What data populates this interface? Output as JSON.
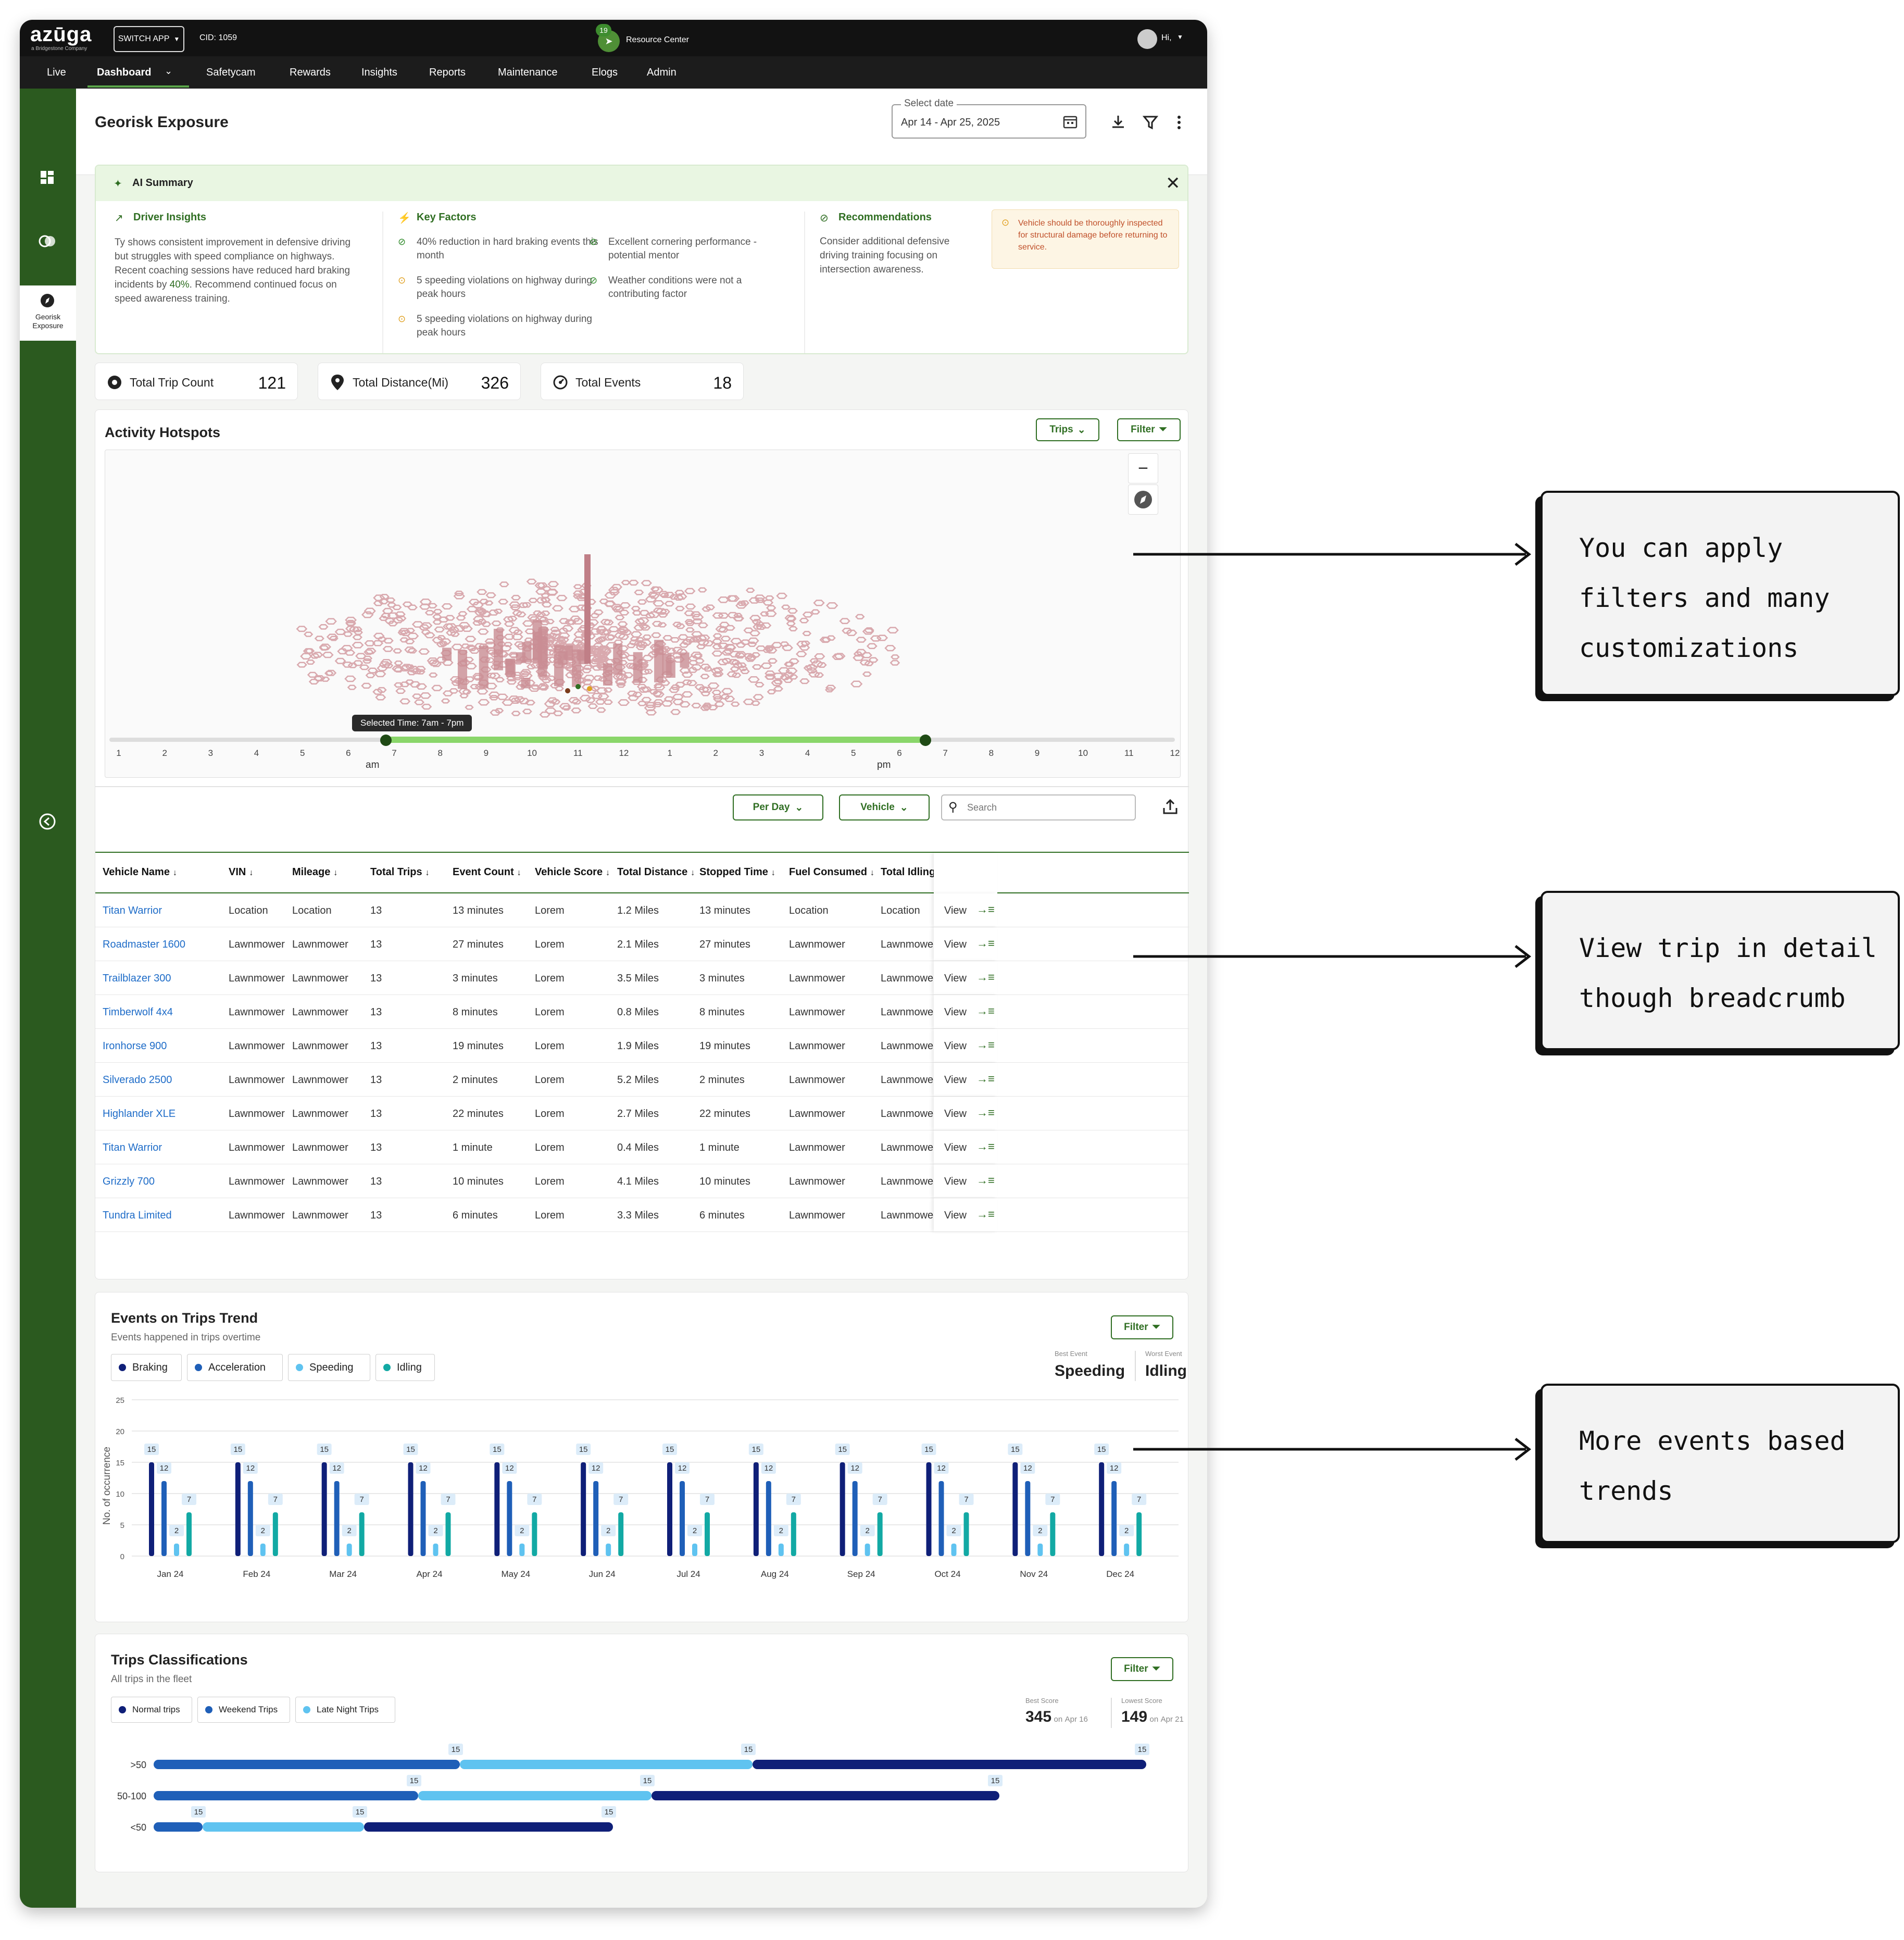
{
  "brand": {
    "logo": "azūga",
    "tagline": "a Bridgestone Company"
  },
  "topbar": {
    "switch_app": "SWITCH APP",
    "cid": "CID: 1059",
    "resource_badge": "19",
    "resource_center": "Resource Center",
    "greeting": "Hi,"
  },
  "nav": {
    "items": [
      "Live",
      "Dashboard",
      "Safetycam",
      "Rewards",
      "Insights",
      "Reports",
      "Maintenance",
      "Elogs",
      "Admin"
    ],
    "active": "Dashboard"
  },
  "sidebar": {
    "georisk_label": "Georisk Exposure"
  },
  "header": {
    "title": "Georisk Exposure",
    "date_label": "Select date",
    "date_value": "Apr 14 - Apr 25, 2025"
  },
  "ai_summary": {
    "title": "AI Summary",
    "driver_insights": {
      "title": "Driver Insights",
      "text_before": "Ty shows consistent improvement in defensive driving but struggles with speed compliance on highways. Recent coaching sessions have reduced hard braking incidents by ",
      "highlight": "40%",
      "text_after": ". Recommend continued focus on speed awareness training."
    },
    "key_factors": {
      "title": "Key Factors",
      "items": [
        {
          "text": "40% reduction in hard braking events this month",
          "status": "good"
        },
        {
          "text": "Excellent cornering performance - potential mentor",
          "status": "good"
        },
        {
          "text": "5 speeding violations on highway during peak hours",
          "status": "warn"
        },
        {
          "text": "Weather conditions were not a contributing factor",
          "status": "good"
        },
        {
          "text": "5 speeding violations on highway during peak hours",
          "status": "warn"
        }
      ]
    },
    "recommendations": {
      "title": "Recommendations",
      "text": "Consider additional defensive driving training focusing on intersection awareness.",
      "alert": "Vehicle should be thoroughly inspected for structural damage before returning to service."
    }
  },
  "stats": [
    {
      "label": "Total Trip Count",
      "value": "121",
      "icon": "record-icon"
    },
    {
      "label": "Total Distance(Mi)",
      "value": "326",
      "icon": "location-pin-icon"
    },
    {
      "label": "Total Events",
      "value": "18",
      "icon": "gauge-icon"
    }
  ],
  "hotspots": {
    "title": "Activity Hotspots",
    "trips_btn": "Trips",
    "filter_btn": "Filter",
    "selected_time": "Selected Time: 7am - 7pm",
    "hours": [
      "1",
      "2",
      "3",
      "4",
      "5",
      "6",
      "7",
      "8",
      "9",
      "10",
      "11",
      "12",
      "1",
      "2",
      "3",
      "4",
      "5",
      "6",
      "7",
      "8",
      "9",
      "10",
      "11",
      "12"
    ],
    "am": "am",
    "pm": "pm"
  },
  "table": {
    "per_day": "Per Day",
    "vehicle": "Vehicle",
    "search_placeholder": "Search",
    "columns": [
      "Vehicle Name",
      "VIN",
      "Mileage",
      "Total Trips",
      "Event Count",
      "Vehicle Score",
      "Total Distance",
      "Stopped Time",
      "Fuel Consumed",
      "Total Idling"
    ],
    "view_label": "View",
    "rows": [
      [
        "Titan Warrior",
        "Location",
        "Location",
        "13",
        "13 minutes",
        "Lorem",
        "1.2 Miles",
        "13 minutes",
        "Location",
        "Location"
      ],
      [
        "Roadmaster 1600",
        "Lawnmower",
        "Lawnmower",
        "13",
        "27 minutes",
        "Lorem",
        "2.1 Miles",
        "27 minutes",
        "Lawnmower",
        "Lawnmower"
      ],
      [
        "Trailblazer 300",
        "Lawnmower",
        "Lawnmower",
        "13",
        "3 minutes",
        "Lorem",
        "3.5 Miles",
        "3 minutes",
        "Lawnmower",
        "Lawnmower"
      ],
      [
        "Timberwolf 4x4",
        "Lawnmower",
        "Lawnmower",
        "13",
        "8 minutes",
        "Lorem",
        "0.8 Miles",
        "8 minutes",
        "Lawnmower",
        "Lawnmower"
      ],
      [
        "Ironhorse 900",
        "Lawnmower",
        "Lawnmower",
        "13",
        "19 minutes",
        "Lorem",
        "1.9 Miles",
        "19 minutes",
        "Lawnmower",
        "Lawnmower"
      ],
      [
        "Silverado 2500",
        "Lawnmower",
        "Lawnmower",
        "13",
        "2 minutes",
        "Lorem",
        "5.2 Miles",
        "2 minutes",
        "Lawnmower",
        "Lawnmower"
      ],
      [
        "Highlander XLE",
        "Lawnmower",
        "Lawnmower",
        "13",
        "22 minutes",
        "Lorem",
        "2.7 Miles",
        "22 minutes",
        "Lawnmower",
        "Lawnmower"
      ],
      [
        "Titan Warrior",
        "Lawnmower",
        "Lawnmower",
        "13",
        "1 minute",
        "Lorem",
        "0.4 Miles",
        "1 minute",
        "Lawnmower",
        "Lawnmower"
      ],
      [
        "Grizzly 700",
        "Lawnmower",
        "Lawnmower",
        "13",
        "10 minutes",
        "Lorem",
        "4.1 Miles",
        "10 minutes",
        "Lawnmower",
        "Lawnmower"
      ],
      [
        "Tundra Limited",
        "Lawnmower",
        "Lawnmower",
        "13",
        "6 minutes",
        "Lorem",
        "3.3 Miles",
        "6 minutes",
        "Lawnmower",
        "Lawnmower"
      ]
    ]
  },
  "events_trend": {
    "title": "Events on Trips Trend",
    "subtitle": "Events happened in trips overtime",
    "filter": "Filter",
    "best_label": "Best Event",
    "best_value": "Speeding",
    "worst_label": "Worst Event",
    "worst_value": "Idling"
  },
  "trips_class": {
    "title": "Trips Classifications",
    "subtitle": "All trips in the fleet",
    "filter": "Filter",
    "best_label": "Best Score",
    "best_value": "345",
    "best_on": "on",
    "best_date": "Apr 16",
    "lowest_label": "Lowest Score",
    "lowest_value": "149",
    "lowest_on": "on",
    "lowest_date": "Apr 21"
  },
  "callouts": [
    {
      "lines": [
        "You can apply",
        "filters and many",
        "customizations"
      ]
    },
    {
      "lines": [
        "View trip in detail",
        "though breadcrumb"
      ]
    },
    {
      "lines": [
        "More events based",
        "trends"
      ]
    }
  ],
  "colors": {
    "sidebar": "#2b5a1f",
    "accent": "#2f6e22",
    "braking": "#0f1f78",
    "acceleration": "#1f5fb8",
    "speeding": "#5fc3f0",
    "idling": "#12a9a4"
  },
  "chart_data": [
    {
      "type": "bar",
      "title": "Events on Trips Trend",
      "ylabel": "No. of occurrence",
      "categories": [
        "Jan 24",
        "Feb 24",
        "Mar 24",
        "Apr 24",
        "May 24",
        "Jun 24",
        "Jul 24",
        "Aug 24",
        "Sep 24",
        "Oct 24",
        "Nov 24",
        "Dec 24"
      ],
      "ylim": [
        0,
        25
      ],
      "yticks": [
        "0",
        "5",
        "10",
        "15",
        "20",
        "25"
      ],
      "grid": true,
      "legend": "top-left",
      "series": [
        {
          "name": "Braking",
          "values": [
            15,
            15,
            15,
            15,
            15,
            15,
            15,
            15,
            15,
            15,
            15,
            15
          ]
        },
        {
          "name": "Acceleration",
          "values": [
            12,
            12,
            12,
            12,
            12,
            12,
            12,
            12,
            12,
            12,
            12,
            12
          ]
        },
        {
          "name": "Speeding",
          "values": [
            2,
            2,
            2,
            2,
            2,
            2,
            2,
            2,
            2,
            2,
            2,
            2
          ]
        },
        {
          "name": "Idling",
          "values": [
            7,
            7,
            7,
            7,
            7,
            7,
            7,
            7,
            7,
            7,
            7,
            7
          ]
        }
      ]
    },
    {
      "type": "bar",
      "title": "Trips Classifications",
      "orientation": "horizontal-stacked",
      "categories": [
        ">50",
        "50-100",
        "<50"
      ],
      "legend": "top-left",
      "series": [
        {
          "name": "Normal trips",
          "values": [
            15,
            15,
            15
          ]
        },
        {
          "name": "Weekend Trips",
          "values": [
            15,
            15,
            15
          ]
        },
        {
          "name": "Late Night Trips",
          "values": [
            15,
            15,
            15
          ]
        }
      ]
    }
  ]
}
